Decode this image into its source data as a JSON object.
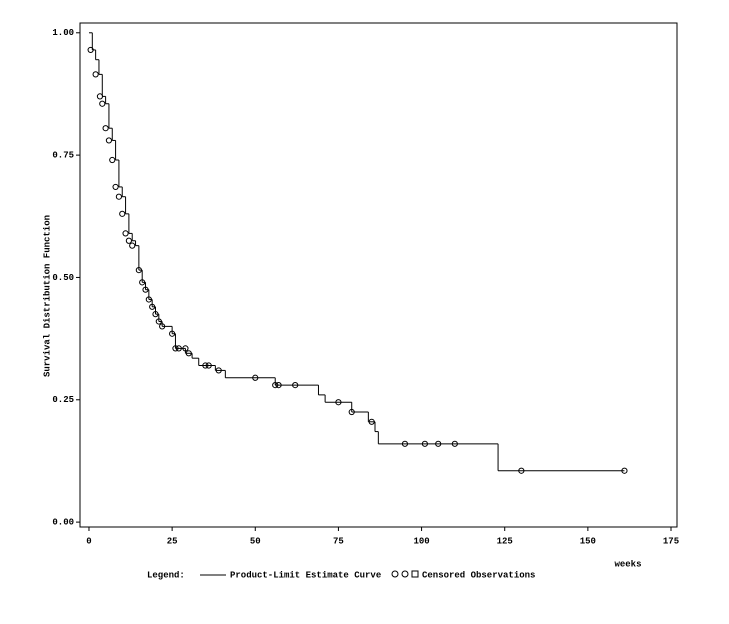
{
  "chart_data": {
    "type": "step",
    "y_label": "Survival Distribution Function",
    "x_label": "weeks",
    "legend_title": "Legend:",
    "xlim": [
      -2.7,
      176.8
    ],
    "ylim": [
      -0.01,
      1.02
    ],
    "xticks": [
      0,
      25,
      50,
      75,
      100,
      125,
      150,
      175
    ],
    "yticks": [
      {
        "value": 0,
        "label": "0.00"
      },
      {
        "value": 0.25,
        "label": "0.25"
      },
      {
        "value": 0.5,
        "label": "0.50"
      },
      {
        "value": 0.75,
        "label": "0.75"
      },
      {
        "value": 1,
        "label": "1.00"
      }
    ],
    "series": [
      {
        "name": "Product-Limit Estimate Curve",
        "color": "#000000",
        "x": [
          0,
          1,
          2,
          3,
          4,
          5,
          6,
          7,
          8,
          9,
          10,
          11,
          12,
          13,
          14,
          15,
          16,
          17,
          18,
          19,
          20,
          21,
          22,
          25,
          26,
          29,
          31,
          33,
          38,
          41,
          56,
          69,
          71,
          79,
          84,
          86,
          87,
          123,
          161
        ],
        "values": [
          1.0,
          0.965,
          0.945,
          0.915,
          0.87,
          0.855,
          0.805,
          0.78,
          0.74,
          0.685,
          0.665,
          0.63,
          0.59,
          0.575,
          0.565,
          0.515,
          0.49,
          0.475,
          0.455,
          0.44,
          0.425,
          0.41,
          0.4,
          0.385,
          0.355,
          0.345,
          0.335,
          0.32,
          0.31,
          0.295,
          0.28,
          0.26,
          0.245,
          0.225,
          0.205,
          0.185,
          0.16,
          0.105,
          0.105
        ]
      },
      {
        "name": "Censored Observations",
        "color": "#000000",
        "x": [
          0.5,
          2,
          3.3,
          4,
          5,
          6,
          7,
          8,
          9,
          10,
          11,
          12,
          13,
          15,
          16,
          17,
          18,
          19,
          20,
          21,
          22,
          25,
          26,
          27,
          29,
          30,
          35,
          36,
          39,
          50,
          56,
          57,
          62,
          75,
          79,
          85,
          95,
          101,
          105,
          110,
          130,
          161
        ],
        "values": [
          0.965,
          0.915,
          0.87,
          0.855,
          0.805,
          0.78,
          0.74,
          0.685,
          0.665,
          0.63,
          0.59,
          0.575,
          0.565,
          0.515,
          0.49,
          0.475,
          0.455,
          0.44,
          0.425,
          0.41,
          0.4,
          0.385,
          0.355,
          0.355,
          0.355,
          0.345,
          0.32,
          0.32,
          0.31,
          0.295,
          0.28,
          0.28,
          0.28,
          0.245,
          0.225,
          0.205,
          0.16,
          0.16,
          0.16,
          0.16,
          0.105,
          0.105
        ]
      }
    ]
  }
}
